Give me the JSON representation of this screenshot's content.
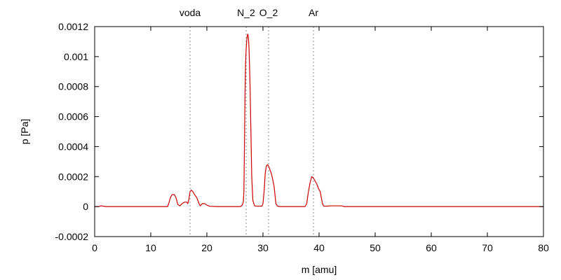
{
  "chart_data": {
    "type": "line",
    "title": "",
    "xlabel": "m [amu]",
    "ylabel": "p [Pa]",
    "xlim": [
      0,
      80
    ],
    "ylim": [
      -0.0002,
      0.0012
    ],
    "x_ticks": [
      0,
      10,
      20,
      30,
      40,
      50,
      60,
      70,
      80
    ],
    "x_tick_labels": [
      "0",
      "10",
      "20",
      "30",
      "40",
      "50",
      "60",
      "70",
      "80"
    ],
    "y_ticks": [
      -0.0002,
      0,
      0.0002,
      0.0004,
      0.0006,
      0.0008,
      0.001,
      0.0012
    ],
    "y_tick_labels": [
      "-0.0002",
      "0",
      "0.0002",
      "0.0004",
      "0.0006",
      "0.0008",
      "0.001",
      "0.0012"
    ],
    "grid": false,
    "line_color": "#cc0000",
    "marker_color": "#888888",
    "markers": [
      {
        "label": "voda",
        "x": 17
      },
      {
        "label": "N_2",
        "x": 27
      },
      {
        "label": "O_2",
        "x": 31
      },
      {
        "label": "Ar",
        "x": 39
      }
    ],
    "series": [
      {
        "x": [
          0,
          0.8,
          1.0,
          1.2,
          1.5,
          2,
          5,
          10,
          13,
          13.2,
          13.5,
          13.8,
          14.2,
          14.5,
          14.8,
          15.2,
          15.6,
          16.0,
          16.4,
          16.6,
          16.8,
          17.0,
          17.2,
          17.5,
          17.8,
          18.2,
          18.6,
          18.8,
          19.2,
          19.6,
          20.0,
          20.5,
          22,
          25,
          26,
          26.3,
          26.5,
          26.6,
          26.7,
          26.8,
          26.9,
          27.0,
          27.1,
          27.2,
          27.3,
          27.4,
          27.5,
          27.6,
          27.7,
          27.8,
          27.9,
          28.0,
          28.2,
          28.5,
          29,
          29.8,
          30.0,
          30.2,
          30.4,
          30.6,
          30.8,
          31.0,
          31.2,
          31.5,
          31.8,
          32.0,
          32.3,
          32.6,
          33,
          35,
          37.5,
          37.8,
          38.1,
          38.4,
          38.7,
          39.0,
          39.3,
          39.6,
          39.9,
          40.2,
          40.4,
          40.6,
          40.8,
          41.0,
          41.5,
          42,
          44,
          44.5,
          50,
          60,
          70,
          80
        ],
        "y": [
          0,
          0,
          5e-06,
          5e-06,
          3e-06,
          0,
          0,
          0,
          0,
          2e-05,
          6e-05,
          8e-05,
          8e-05,
          6e-05,
          1.5e-05,
          5e-06,
          2e-05,
          3e-05,
          3e-05,
          2e-05,
          5e-05,
          0.0001,
          0.00011,
          0.0001,
          8e-05,
          6e-05,
          2e-05,
          5e-06,
          2e-05,
          2e-05,
          1e-05,
          2e-06,
          0,
          0,
          0,
          1e-05,
          3e-05,
          0.0001,
          0.0004,
          0.00075,
          0.00095,
          0.00105,
          0.0011,
          0.00114,
          0.00115,
          0.00113,
          0.00107,
          0.00095,
          0.0008,
          0.0006,
          0.0004,
          0.0002,
          4e-05,
          5e-06,
          3e-06,
          3e-06,
          2e-05,
          0.0001,
          0.00022,
          0.00027,
          0.00028,
          0.00027,
          0.00025,
          0.00022,
          0.00017,
          0.00013,
          2e-05,
          3e-06,
          0,
          0,
          0,
          2e-05,
          0.0001,
          0.00016,
          0.0002,
          0.00019,
          0.00017,
          0.00015,
          0.00012,
          0.0001,
          6e-05,
          2e-05,
          5e-06,
          3e-06,
          3e-06,
          5e-06,
          5e-06,
          0,
          0,
          0,
          0,
          0
        ]
      }
    ]
  }
}
